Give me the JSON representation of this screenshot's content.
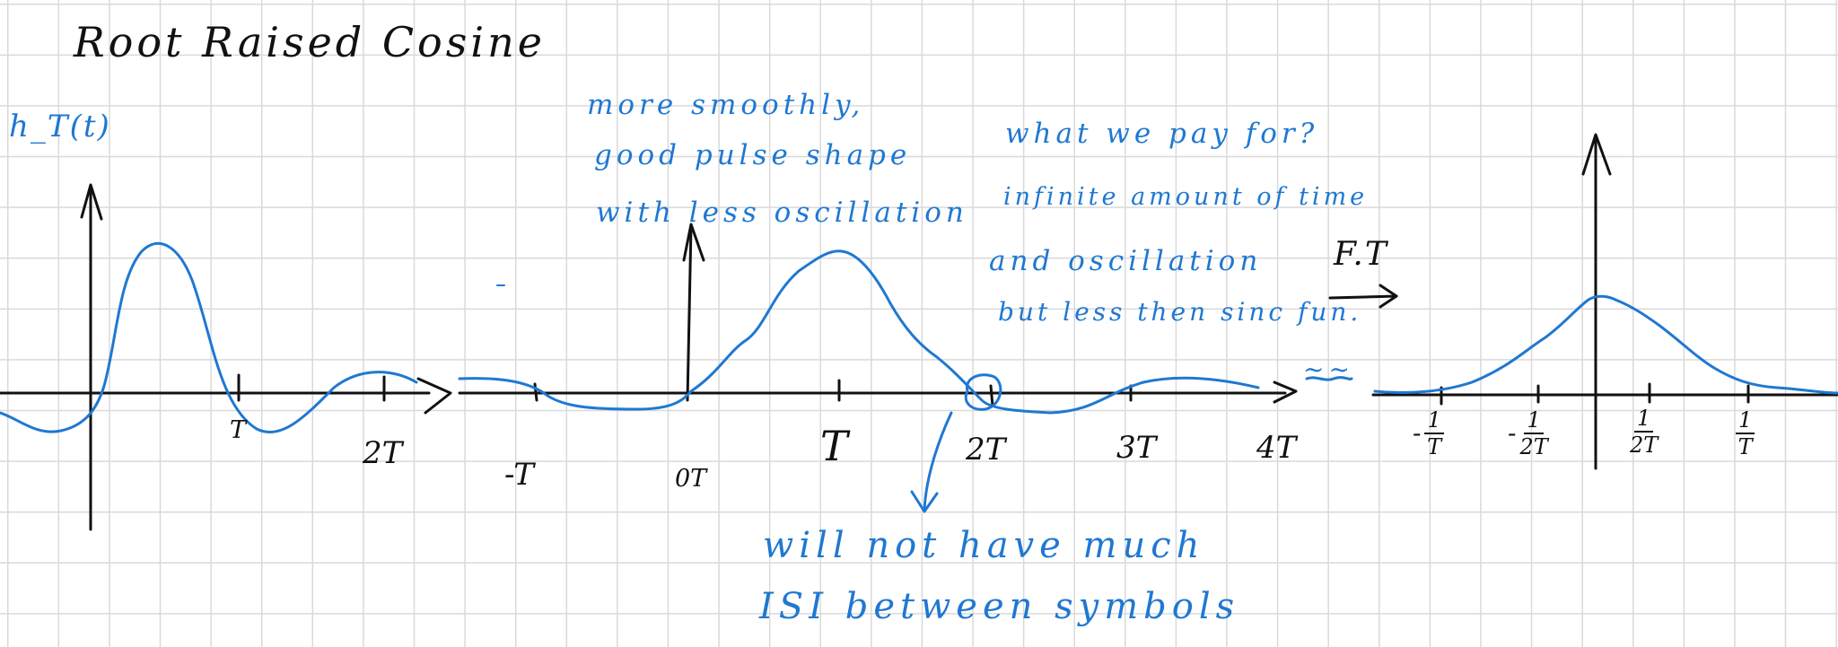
{
  "title": "Root Raised Cosine",
  "ylabel": "h_T(t)",
  "annotations": {
    "pulse_note": [
      "more smoothly,",
      "good pulse shape",
      "with less oscillation"
    ],
    "cost_note": [
      "what we pay for?",
      "infinite amount of time",
      "and oscillation",
      "but less then sinc fun."
    ],
    "isi_note": [
      "will not have much",
      "ISI between symbols"
    ],
    "transform_label": "F.T",
    "trailing_mark": "~~"
  },
  "graph1_ticks": [
    "T",
    "2T"
  ],
  "graph2_ticks": [
    "-T",
    "0T",
    "T",
    "2T",
    "3T",
    "4T"
  ],
  "graph3_ticks": [
    {
      "sign": "-",
      "num": "1",
      "den": "T"
    },
    {
      "sign": "-",
      "num": "1",
      "den": "2T"
    },
    {
      "sign": "",
      "num": "1",
      "den": "2T"
    },
    {
      "sign": "",
      "num": "1",
      "den": "T"
    }
  ],
  "colors": {
    "ink": "#111111",
    "pen_blue": "#1f78d1",
    "grid": "#d9d9d9",
    "paper": "#ffffff"
  }
}
